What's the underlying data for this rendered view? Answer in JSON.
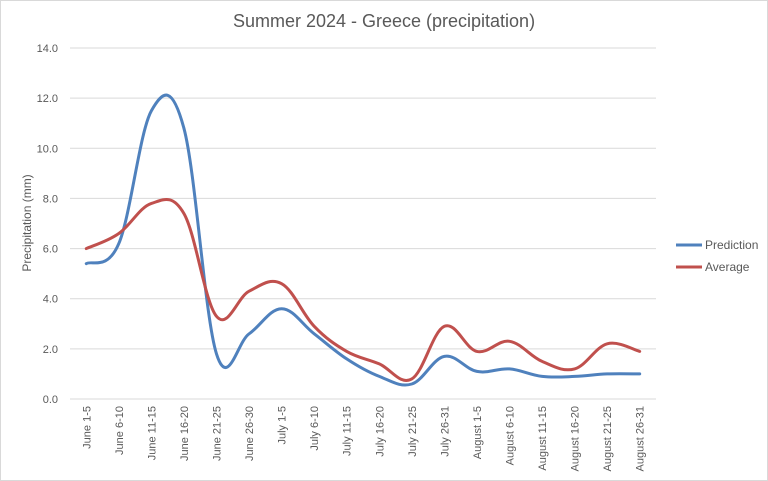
{
  "chart_data": {
    "type": "line",
    "title": "Summer 2024 - Greece (precipitation)",
    "xlabel": "",
    "ylabel": "Precipitation (mm)",
    "ylim": [
      0,
      14
    ],
    "y_ticks": [
      "0.0",
      "2.0",
      "4.0",
      "6.0",
      "8.0",
      "10.0",
      "12.0",
      "14.0"
    ],
    "grid": true,
    "legend_position": "right",
    "categories": [
      "June 1-5",
      "June 6-10",
      "June 11-15",
      "June 16-20",
      "June 21-25",
      "June 26-30",
      "July 1-5",
      "July 6-10",
      "July 11-15",
      "July 16-20",
      "July 21-25",
      "July 26-31",
      "August 1-5",
      "August 6-10",
      "August 11-15",
      "August 16-20",
      "August 21-25",
      "August 26-31"
    ],
    "series": [
      {
        "name": "Prediction",
        "color": "#4f81bd",
        "values": [
          5.4,
          6.2,
          11.5,
          10.8,
          1.8,
          2.6,
          3.6,
          2.6,
          1.6,
          0.9,
          0.6,
          1.7,
          1.1,
          1.2,
          0.9,
          0.9,
          1.0,
          1.0
        ]
      },
      {
        "name": "Average",
        "color": "#c0504d",
        "values": [
          6.0,
          6.6,
          7.8,
          7.4,
          3.3,
          4.3,
          4.6,
          2.9,
          1.9,
          1.4,
          0.8,
          2.9,
          1.9,
          2.3,
          1.5,
          1.2,
          2.2,
          1.9
        ]
      }
    ]
  }
}
